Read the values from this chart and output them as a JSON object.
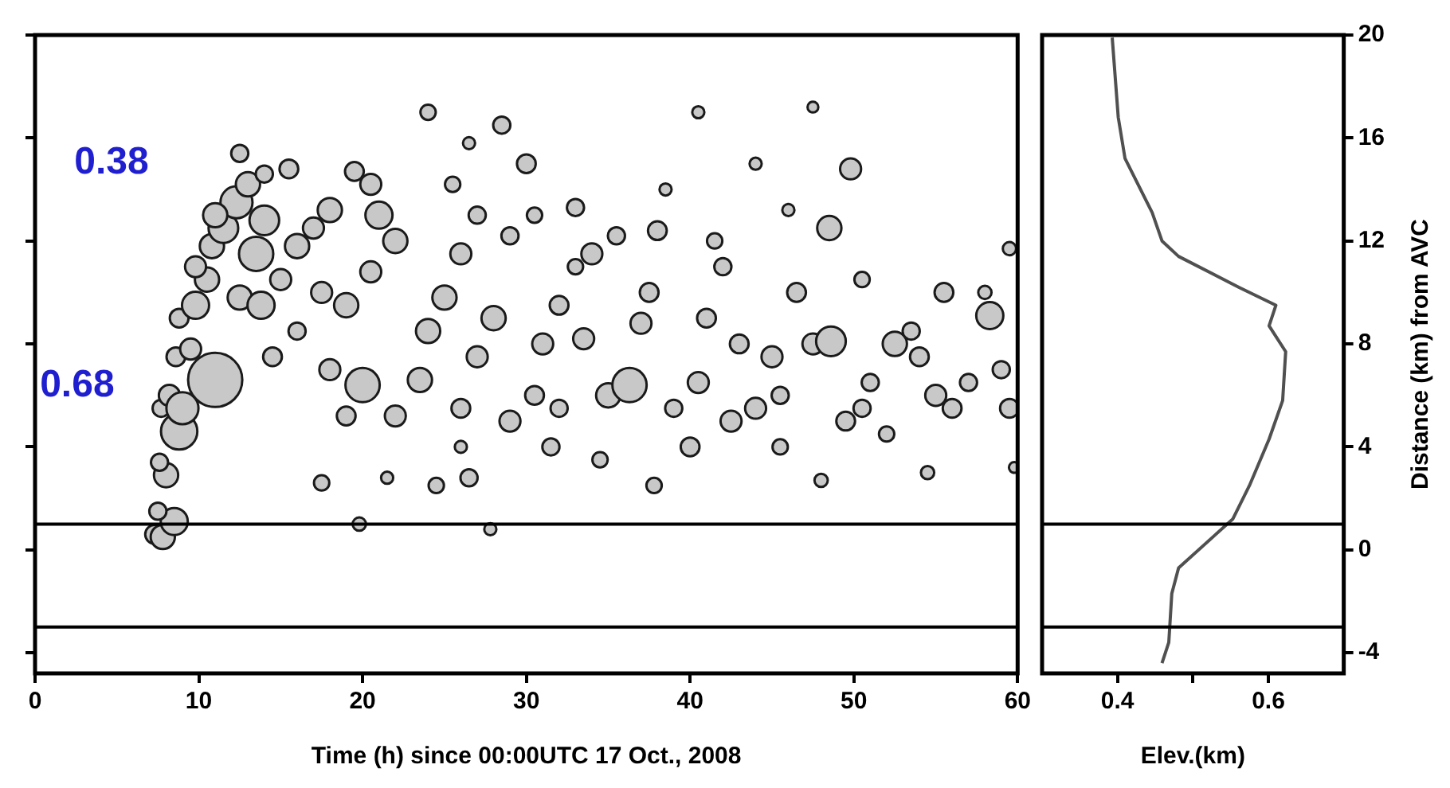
{
  "chart_data": [
    {
      "type": "bubble",
      "xlabel": "Time (h) since 00:00UTC 17 Oct., 2008",
      "xlim": [
        0,
        60
      ],
      "xticks": [
        0,
        10,
        20,
        30,
        40,
        50,
        60
      ],
      "ylim": [
        -4.8,
        20
      ],
      "yticks": [
        -4,
        0,
        4,
        8,
        12,
        16,
        20
      ],
      "tick_labels": "x",
      "annotations": [
        "0.38",
        "0.68"
      ],
      "ref_lines": [
        {
          "axis": "y",
          "value": 1.0,
          "color": "#000000"
        },
        {
          "axis": "y",
          "value": -3.0,
          "color": "#000000"
        }
      ],
      "series": [
        {
          "color": "#c8c8c8",
          "x": [
            7.3,
            7.8,
            8.5,
            7.5,
            8.0,
            7.6,
            8.8,
            7.7,
            8.2,
            9.0,
            11.0,
            8.6,
            9.5,
            8.8,
            9.8,
            10.5,
            9.8,
            10.8,
            11.5,
            12.3,
            11.0,
            13.0,
            12.5,
            14,
            15.5,
            13.5,
            14.0,
            12.5,
            13.8,
            15,
            16,
            17,
            18,
            19.5,
            20.5,
            21,
            22,
            17.5,
            19,
            20.5,
            16,
            14.5,
            18,
            20,
            22,
            23.5,
            19,
            24,
            25,
            26,
            27,
            25.5,
            24,
            26.5,
            28.5,
            30,
            29,
            28,
            27,
            26,
            29,
            30.5,
            31,
            32,
            33,
            31.5,
            30.5,
            26,
            17.5,
            21.5,
            24.5,
            26.5,
            19.8,
            27.8,
            34,
            35.5,
            33.5,
            35,
            36.3,
            37,
            37.5,
            38,
            37.8,
            39,
            40,
            40.5,
            40.5,
            41,
            41.5,
            42,
            43,
            44,
            45,
            44,
            45.5,
            45.5,
            46.5,
            47.5,
            47.5,
            48,
            48.6,
            48.5,
            49.8,
            49.5,
            50.5,
            51,
            52,
            52.5,
            53.5,
            54,
            55,
            55.5,
            54.5,
            56,
            57,
            58.3,
            58,
            59,
            59.5,
            59.5,
            59.8,
            38.5,
            33,
            32,
            34.5,
            42.5,
            50.5,
            46
          ],
          "values": [
            0.6,
            0.5,
            1.1,
            1.5,
            2.9,
            3.4,
            4.6,
            5.5,
            6.0,
            5.5,
            6.6,
            7.5,
            7.8,
            9.0,
            9.5,
            10.5,
            11.0,
            11.8,
            12.5,
            13.5,
            13.0,
            14.2,
            15.4,
            14.6,
            14.8,
            11.5,
            12.8,
            9.8,
            9.5,
            10.5,
            11.8,
            12.5,
            13.2,
            14.7,
            14.2,
            13.0,
            12.0,
            10.0,
            9.5,
            10.8,
            8.5,
            7.5,
            7.0,
            6.4,
            5.2,
            6.6,
            5.2,
            8.5,
            9.8,
            11.5,
            13.0,
            14.2,
            17.0,
            15.8,
            16.5,
            15.0,
            12.2,
            9.0,
            7.5,
            5.5,
            5.0,
            6.0,
            8.0,
            9.5,
            11.0,
            4.0,
            13.0,
            4.0,
            2.6,
            2.8,
            2.5,
            2.8,
            1.0,
            0.8,
            11.5,
            12.2,
            8.2,
            6.0,
            6.4,
            8.8,
            10.0,
            12.4,
            2.5,
            5.5,
            4.0,
            17.0,
            6.5,
            9.0,
            12.0,
            11.0,
            8.0,
            5.5,
            7.5,
            15.0,
            6.0,
            4.0,
            10.0,
            8.0,
            17.2,
            2.7,
            8.1,
            12.5,
            14.8,
            5.0,
            10.5,
            6.5,
            4.5,
            8.0,
            8.5,
            7.5,
            6.0,
            10.0,
            3.0,
            5.5,
            6.5,
            9.1,
            10.0,
            7.0,
            5.5,
            11.7,
            3.2,
            14.0,
            13.3,
            5.5,
            3.5,
            5.0,
            5.5,
            13.2
          ],
          "sizes": [
            0.12,
            0.2,
            0.25,
            0.1,
            0.2,
            0.1,
            0.45,
            0.1,
            0.15,
            0.35,
            1,
            0.12,
            0.15,
            0.12,
            0.25,
            0.2,
            0.15,
            0.2,
            0.3,
            0.35,
            0.2,
            0.2,
            0.1,
            0.1,
            0.12,
            0.4,
            0.3,
            0.2,
            0.25,
            0.15,
            0.2,
            0.15,
            0.2,
            0.12,
            0.15,
            0.25,
            0.2,
            0.15,
            0.2,
            0.15,
            0.1,
            0.12,
            0.15,
            0.4,
            0.15,
            0.2,
            0.12,
            0.2,
            0.2,
            0.15,
            0.1,
            0.08,
            0.08,
            0.05,
            0.1,
            0.12,
            0.1,
            0.2,
            0.15,
            0.12,
            0.15,
            0.12,
            0.15,
            0.12,
            0.08,
            0.1,
            0.08,
            0.05,
            0.08,
            0.05,
            0.08,
            0.1,
            0.06,
            0.05,
            0.15,
            0.1,
            0.15,
            0.2,
            0.4,
            0.15,
            0.12,
            0.12,
            0.08,
            0.1,
            0.12,
            0.05,
            0.15,
            0.12,
            0.08,
            0.1,
            0.12,
            0.15,
            0.15,
            0.05,
            0.1,
            0.08,
            0.12,
            0.15,
            0.04,
            0.06,
            0.3,
            0.2,
            0.15,
            0.12,
            0.08,
            0.1,
            0.08,
            0.2,
            0.1,
            0.12,
            0.15,
            0.12,
            0.06,
            0.12,
            0.1,
            0.25,
            0.06,
            0.1,
            0.12,
            0.06,
            0.04,
            0.05,
            0.1,
            0.1,
            0.08,
            0.15,
            0.1,
            0.05
          ]
        }
      ]
    },
    {
      "type": "line",
      "xlabel": "Elev.(km)",
      "ylabel": "Distance (km) from AVC",
      "xlim": [
        0.3,
        0.7
      ],
      "xticks": [
        0.4,
        {
          "value": 0.5,
          "label": null
        },
        0.6
      ],
      "ylim": [
        -4.8,
        20
      ],
      "yticks": [
        -4,
        0,
        4,
        8,
        12,
        16,
        20
      ],
      "ref_lines": [
        {
          "axis": "y",
          "value": 1.0,
          "color": "#000000"
        },
        {
          "axis": "y",
          "value": -3.0,
          "color": "#000000"
        }
      ],
      "series": [
        {
          "color": "#505050",
          "x": [
            0.393,
            0.401,
            0.41,
            0.446,
            0.459,
            0.481,
            0.561,
            0.61,
            0.601,
            0.623,
            0.619,
            0.601,
            0.575,
            0.553,
            0.481,
            0.472,
            0.468,
            0.459
          ],
          "values": [
            19.9,
            16.8,
            15.2,
            13.1,
            12.0,
            11.4,
            10.2,
            9.5,
            8.7,
            7.7,
            5.8,
            4.3,
            2.5,
            1.2,
            -0.7,
            -1.7,
            -3.6,
            -4.4
          ]
        }
      ]
    }
  ]
}
